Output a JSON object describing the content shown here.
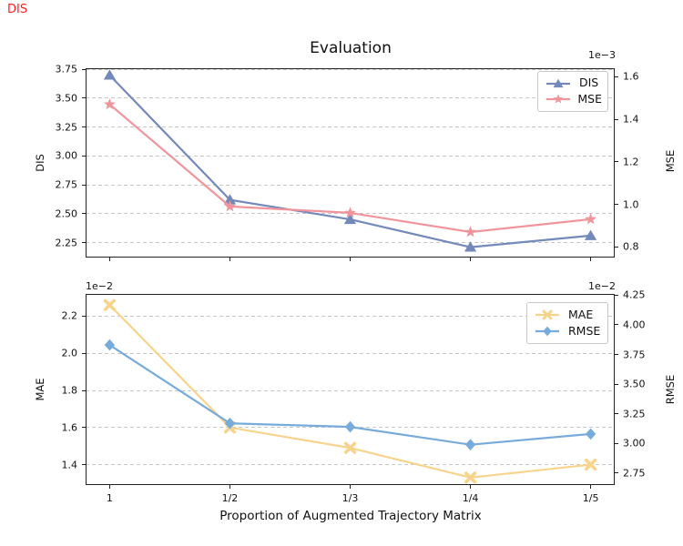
{
  "annotation": {
    "corner_label": "DIS",
    "corner_color": "#ff1f1f"
  },
  "style": {
    "grid_color": "#c7c7c7",
    "spine_color": "#222222",
    "text_color": "#111111",
    "background": "#ffffff"
  },
  "chart_data": [
    {
      "type": "line",
      "title": "Evaluation",
      "categories": [
        "1",
        "1/2",
        "1/3",
        "1/4",
        "1/5"
      ],
      "grid": true,
      "legend_position": "upper right",
      "legend_entries": [
        "DIS",
        "MSE"
      ],
      "left_axis": {
        "label": "DIS",
        "ticks": [
          2.25,
          2.5,
          2.75,
          3.0,
          3.25,
          3.5,
          3.75
        ],
        "tick_labels": [
          "2.25",
          "2.50",
          "2.75",
          "3.00",
          "3.25",
          "3.50",
          "3.75"
        ],
        "range": [
          2.12,
          3.76
        ]
      },
      "right_axis": {
        "label": "MSE",
        "offset_text": "1e−3",
        "ticks": [
          0.8,
          1.0,
          1.2,
          1.4,
          1.6
        ],
        "tick_labels": [
          "0.8",
          "1.0",
          "1.2",
          "1.4",
          "1.6"
        ],
        "range": [
          0.75,
          1.64
        ]
      },
      "series": [
        {
          "name": "DIS",
          "axis": "left",
          "color": "#7389b9",
          "marker": "triangle",
          "values": [
            3.7,
            2.62,
            2.45,
            2.21,
            2.31
          ]
        },
        {
          "name": "MSE",
          "axis": "right",
          "color": "#f0959c",
          "marker": "star",
          "scale": "1e-3",
          "values": [
            1.47,
            0.99,
            0.96,
            0.87,
            0.93
          ]
        }
      ]
    },
    {
      "type": "line",
      "categories": [
        "1",
        "1/2",
        "1/3",
        "1/4",
        "1/5"
      ],
      "xlabel": "Proportion of Augmented Trajectory Matrix",
      "grid": true,
      "legend_position": "upper right",
      "legend_entries": [
        "MAE",
        "RMSE"
      ],
      "left_axis": {
        "label": "MAE",
        "offset_text": "1e−2",
        "ticks": [
          1.4,
          1.6,
          1.8,
          2.0,
          2.2
        ],
        "tick_labels": [
          "1.4",
          "1.6",
          "1.8",
          "2.0",
          "2.2"
        ],
        "range": [
          1.29,
          2.32
        ]
      },
      "right_axis": {
        "label": "RMSE",
        "offset_text": "1e−2",
        "ticks": [
          2.75,
          3.0,
          3.25,
          3.5,
          3.75,
          4.0,
          4.25
        ],
        "tick_labels": [
          "2.75",
          "3.00",
          "3.25",
          "3.50",
          "3.75",
          "4.00",
          "4.25"
        ],
        "range": [
          2.65,
          4.26
        ]
      },
      "series": [
        {
          "name": "MAE",
          "axis": "left",
          "color": "#f8d38c",
          "marker": "x",
          "scale": "1e-2",
          "values": [
            2.26,
            1.6,
            1.49,
            1.33,
            1.4
          ]
        },
        {
          "name": "RMSE",
          "axis": "right",
          "color": "#77abdb",
          "marker": "diamond",
          "scale": "1e-2",
          "values": [
            3.83,
            3.17,
            3.14,
            2.99,
            3.08
          ]
        }
      ]
    }
  ]
}
